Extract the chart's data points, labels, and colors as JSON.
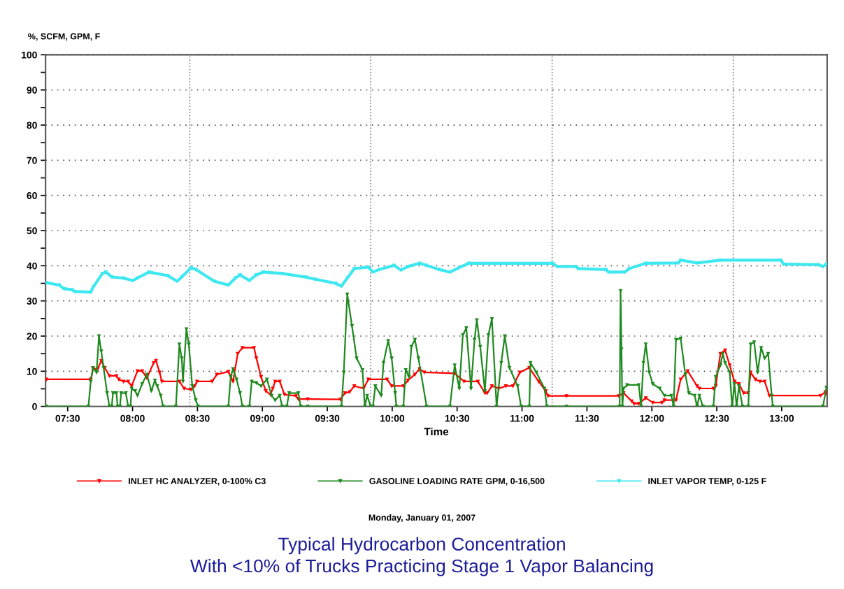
{
  "chart_data": {
    "type": "line",
    "title": "Typical Hydrocarbon Concentration\nWith <10% of Trucks Practicing Stage 1 Vapor Balancing",
    "xlabel": "Time",
    "ylabel": "%, SCFM, GPM, F",
    "annotations": [
      "Monday, January 01, 2007"
    ],
    "xlim": [
      7.33,
      13.35
    ],
    "xticks": [
      {
        "value": 7.5,
        "label": "07:30"
      },
      {
        "value": 8.0,
        "label": "08:00"
      },
      {
        "value": 8.5,
        "label": "08:30"
      },
      {
        "value": 9.0,
        "label": "09:00"
      },
      {
        "value": 9.5,
        "label": "09:30"
      },
      {
        "value": 10.0,
        "label": "10:00"
      },
      {
        "value": 10.5,
        "label": "10:30"
      },
      {
        "value": 11.0,
        "label": "11:00"
      },
      {
        "value": 11.5,
        "label": "11:30"
      },
      {
        "value": 12.0,
        "label": "12:00"
      },
      {
        "value": 12.5,
        "label": "12:30"
      },
      {
        "value": 13.0,
        "label": "13:00"
      }
    ],
    "ylim": [
      0,
      100
    ],
    "yticks": [
      0,
      {
        "value": 5,
        "label": null
      },
      10,
      {
        "value": 15,
        "label": null
      },
      20,
      {
        "value": 25,
        "label": null
      },
      30,
      {
        "value": 35,
        "label": null
      },
      40,
      {
        "value": 45,
        "label": null
      },
      50,
      {
        "value": 55,
        "label": null
      },
      60,
      {
        "value": 65,
        "label": null
      },
      70,
      {
        "value": 75,
        "label": null
      },
      80,
      {
        "value": 85,
        "label": null
      },
      90,
      {
        "value": 95,
        "label": null
      },
      100
    ],
    "grid": "y",
    "legend": "bottom",
    "marker": "triangle",
    "line_style": "solid",
    "ref_lines": [
      {
        "axis": "x",
        "value": 8.441,
        "line_style": "dotted",
        "color": "#808080"
      },
      {
        "axis": "x",
        "value": 9.834,
        "line_style": "dotted",
        "color": "#808080"
      },
      {
        "axis": "x",
        "value": 11.232,
        "line_style": "dotted",
        "color": "#808080"
      },
      {
        "axis": "x",
        "value": 12.627,
        "line_style": "dotted",
        "color": "#808080"
      }
    ],
    "series": [
      {
        "name": "INLET HC ANALYZER, 0-100% C3",
        "color": "#ff0000",
        "x": [
          7.337,
          7.678,
          7.696,
          7.732,
          7.759,
          7.786,
          7.822,
          7.876,
          7.894,
          7.93,
          7.966,
          7.993,
          8.038,
          8.074,
          8.11,
          8.163,
          8.181,
          8.208,
          8.226,
          8.361,
          8.397,
          8.451,
          8.478,
          8.496,
          8.613,
          8.649,
          8.738,
          8.774,
          8.81,
          8.846,
          8.936,
          8.954,
          8.99,
          9.026,
          9.062,
          9.08,
          9.098,
          9.134,
          9.17,
          9.259,
          9.277,
          9.349,
          9.6,
          9.636,
          9.672,
          9.708,
          9.78,
          9.816,
          9.96,
          9.996,
          10.086,
          10.121,
          10.175,
          10.211,
          10.247,
          10.481,
          10.553,
          10.66,
          10.714,
          10.732,
          10.768,
          10.822,
          10.876,
          10.93,
          10.984,
          11.056,
          11.128,
          11.182,
          11.2,
          11.343,
          11.746,
          11.782,
          11.845,
          11.863,
          11.899,
          11.953,
          12.007,
          12.079,
          12.097,
          12.186,
          12.222,
          12.276,
          12.348,
          12.366,
          12.474,
          12.492,
          12.528,
          12.564,
          12.6,
          12.636,
          12.671,
          12.707,
          12.743,
          12.761,
          12.797,
          12.833,
          12.869,
          12.905,
          13.3,
          13.336,
          13.345
        ],
        "values": [
          7.7,
          7.7,
          10.7,
          10.7,
          13.0,
          11.0,
          8.7,
          8.7,
          7.7,
          7.1,
          7.1,
          5.8,
          10.1,
          10.1,
          8.1,
          12.4,
          13.0,
          9.7,
          7.1,
          7.1,
          5.1,
          4.8,
          5.8,
          7.1,
          7.1,
          9.1,
          9.9,
          7.1,
          15.0,
          16.7,
          16.7,
          13.7,
          8.4,
          4.4,
          3.4,
          5.1,
          7.1,
          7.1,
          3.4,
          3.0,
          2.1,
          2.1,
          2.0,
          3.8,
          4.1,
          5.8,
          5.1,
          7.7,
          7.7,
          5.8,
          5.8,
          7.4,
          9.1,
          10.7,
          9.7,
          9.4,
          7.1,
          7.1,
          3.8,
          3.8,
          5.8,
          5.1,
          5.8,
          5.8,
          9.7,
          11.0,
          7.1,
          4.4,
          3.0,
          3.0,
          3.0,
          3.8,
          1.5,
          0.8,
          0.8,
          2.4,
          1.1,
          1.1,
          1.8,
          1.8,
          7.7,
          10.1,
          5.8,
          5.1,
          5.1,
          5.8,
          15.0,
          16.0,
          11.7,
          7.1,
          6.4,
          3.8,
          3.8,
          9.7,
          7.7,
          7.1,
          7.1,
          3.1,
          3.1,
          4.1,
          3.7
        ]
      },
      {
        "name": "GASOLINE LOADING RATE GPM, 0-16,500",
        "color": "#1e8a1e",
        "x": [
          7.337,
          7.66,
          7.678,
          7.696,
          7.723,
          7.741,
          7.759,
          7.777,
          7.804,
          7.822,
          7.84,
          7.849,
          7.876,
          7.885,
          7.903,
          7.912,
          7.948,
          7.966,
          7.984,
          7.993,
          8.02,
          8.038,
          8.074,
          8.11,
          8.145,
          8.172,
          8.19,
          8.217,
          8.235,
          8.334,
          8.361,
          8.379,
          8.388,
          8.415,
          8.433,
          8.46,
          8.487,
          8.505,
          8.738,
          8.756,
          8.774,
          8.801,
          8.828,
          8.846,
          8.9,
          8.918,
          8.954,
          8.99,
          9.035,
          9.071,
          9.098,
          9.134,
          9.152,
          9.188,
          9.206,
          9.277,
          9.295,
          9.349,
          9.609,
          9.627,
          9.654,
          9.69,
          9.726,
          9.771,
          9.789,
          9.807,
          9.834,
          9.852,
          9.87,
          9.915,
          9.933,
          9.969,
          9.996,
          10.023,
          10.032,
          10.086,
          10.104,
          10.13,
          10.148,
          10.175,
          10.202,
          10.265,
          10.445,
          10.481,
          10.517,
          10.544,
          10.571,
          10.607,
          10.634,
          10.652,
          10.678,
          10.714,
          10.741,
          10.768,
          10.804,
          10.84,
          10.867,
          10.903,
          10.966,
          10.993,
          11.056,
          11.065,
          11.11,
          11.173,
          11.191,
          11.343,
          11.752,
          11.759,
          11.766,
          11.773,
          11.782,
          11.809,
          11.899,
          11.917,
          11.935,
          11.953,
          11.98,
          12.007,
          12.061,
          12.097,
          12.15,
          12.168,
          12.186,
          12.222,
          12.258,
          12.285,
          12.33,
          12.348,
          12.366,
          12.393,
          12.474,
          12.492,
          12.528,
          12.546,
          12.564,
          12.6,
          12.618,
          12.636,
          12.653,
          12.671,
          12.698,
          12.743,
          12.761,
          12.788,
          12.815,
          12.842,
          12.869,
          12.896,
          12.923,
          12.932,
          13.318,
          13.345
        ],
        "values": [
          0,
          0,
          7.1,
          11.0,
          9.7,
          20.0,
          15.7,
          11.0,
          3.8,
          0,
          0,
          3.8,
          3.8,
          0,
          0,
          3.8,
          3.8,
          0,
          0,
          5.1,
          4.4,
          3.1,
          6.4,
          9.1,
          4.4,
          7.4,
          5.8,
          3.1,
          0,
          0,
          17.7,
          13.7,
          7.1,
          22.0,
          17.7,
          5.8,
          1.8,
          0,
          0,
          8.4,
          10.7,
          7.7,
          3.8,
          0,
          0,
          7.1,
          6.7,
          5.8,
          7.7,
          3.1,
          1.8,
          3.1,
          0,
          0,
          3.8,
          3.8,
          0,
          0,
          0,
          9.7,
          31.9,
          22.9,
          13.7,
          10.4,
          0,
          3.1,
          0,
          0,
          5.8,
          3.1,
          12.4,
          18.7,
          13.7,
          3.8,
          0,
          0,
          10.4,
          8.4,
          17.0,
          19.0,
          13.7,
          0,
          0,
          11.7,
          5.1,
          20.3,
          22.3,
          5.1,
          19.0,
          24.6,
          17.0,
          4.4,
          20.3,
          24.9,
          0,
          12.4,
          20.0,
          11.0,
          5.8,
          0,
          0,
          12.4,
          9.7,
          5.1,
          0,
          0,
          0,
          32.9,
          16.3,
          0,
          5.1,
          6.1,
          6.1,
          0,
          12.4,
          17.7,
          9.7,
          6.4,
          5.1,
          3.1,
          3.1,
          0,
          19.0,
          19.3,
          9.1,
          3.8,
          3.1,
          0,
          3.1,
          0,
          0,
          8.4,
          11.7,
          15.0,
          12.4,
          9.7,
          0,
          6.4,
          0,
          5.8,
          0,
          0,
          17.7,
          18.3,
          9.7,
          16.7,
          13.7,
          15.0,
          3.1,
          0,
          0,
          5.4
        ]
      },
      {
        "name": "INLET VAPOR TEMP, 0-125 F",
        "color": "#3ee8f0",
        "x": [
          7.336,
          7.435,
          7.471,
          7.534,
          7.552,
          7.678,
          7.696,
          7.768,
          7.795,
          7.84,
          7.929,
          8.001,
          8.037,
          8.127,
          8.271,
          8.343,
          8.379,
          8.45,
          8.486,
          8.63,
          8.738,
          8.792,
          8.828,
          8.9,
          8.953,
          9.007,
          9.151,
          9.331,
          9.403,
          9.565,
          9.609,
          9.654,
          9.708,
          9.816,
          9.852,
          9.906,
          10.014,
          10.068,
          10.122,
          10.211,
          10.265,
          10.355,
          10.445,
          10.517,
          10.589,
          11.235,
          11.271,
          11.343,
          11.414,
          11.432,
          11.647,
          11.665,
          11.791,
          11.827,
          11.953,
          12.204,
          12.222,
          12.348,
          12.528,
          12.995,
          13.013,
          13.282,
          13.318,
          13.345
        ],
        "values": [
          35.2,
          34.5,
          33.5,
          33.2,
          32.7,
          32.5,
          33.9,
          37.8,
          38.2,
          36.8,
          36.5,
          35.8,
          36.5,
          38.2,
          37.2,
          35.6,
          36.8,
          39.4,
          39.0,
          35.6,
          34.5,
          36.5,
          37.4,
          35.8,
          37.4,
          38.2,
          37.8,
          36.8,
          36.2,
          35.0,
          34.2,
          36.5,
          39.2,
          39.6,
          38.2,
          39.0,
          40.1,
          38.8,
          39.8,
          40.7,
          40.1,
          39.0,
          38.2,
          39.5,
          40.7,
          40.7,
          39.8,
          39.8,
          39.8,
          39.2,
          38.9,
          38.2,
          38.2,
          39.2,
          40.7,
          40.8,
          41.6,
          40.8,
          41.6,
          41.6,
          40.5,
          40.3,
          39.8,
          40.5
        ]
      }
    ]
  }
}
